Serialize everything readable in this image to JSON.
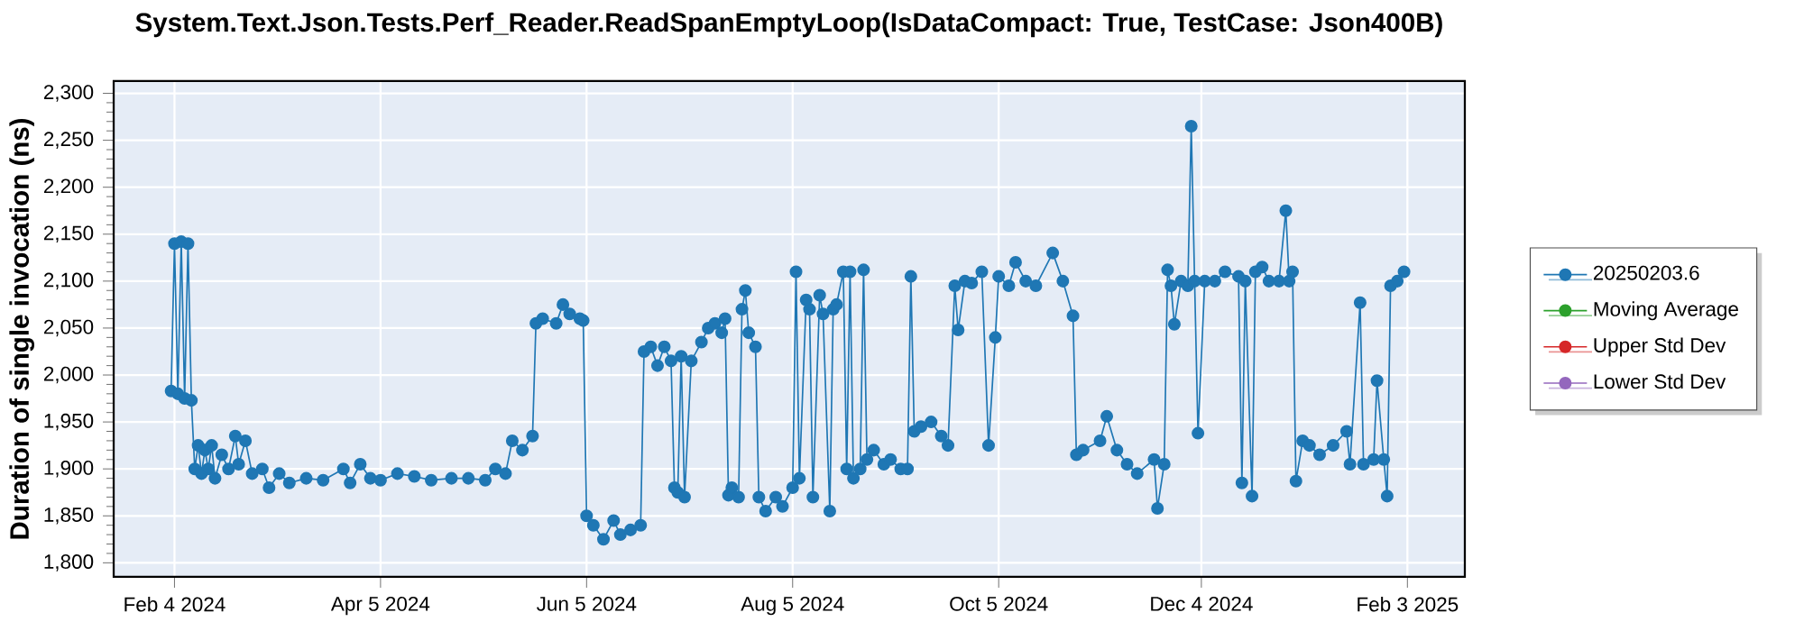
{
  "chart_data": {
    "type": "line",
    "title": "System.Text.Json.Tests.Perf_Reader.ReadSpanEmptyLoop(IsDataCompact: True, TestCase: Json400B)",
    "ylabel": "Duration of single invocation (ns)",
    "x": [
      "2024-02-03",
      "2024-02-04",
      "2024-02-05",
      "2024-02-06",
      "2024-02-07",
      "2024-02-08",
      "2024-02-09",
      "2024-02-10",
      "2024-02-11",
      "2024-02-12",
      "2024-02-13",
      "2024-02-14",
      "2024-02-15",
      "2024-02-16",
      "2024-02-18",
      "2024-02-20",
      "2024-02-22",
      "2024-02-23",
      "2024-02-25",
      "2024-02-27",
      "2024-03-01",
      "2024-03-03",
      "2024-03-06",
      "2024-03-09",
      "2024-03-14",
      "2024-03-19",
      "2024-03-25",
      "2024-03-27",
      "2024-03-30",
      "2024-04-02",
      "2024-04-05",
      "2024-04-10",
      "2024-04-15",
      "2024-04-20",
      "2024-04-26",
      "2024-05-01",
      "2024-05-06",
      "2024-05-09",
      "2024-05-12",
      "2024-05-14",
      "2024-05-17",
      "2024-05-20",
      "2024-05-21",
      "2024-05-23",
      "2024-05-27",
      "2024-05-29",
      "2024-05-31",
      "2024-06-03",
      "2024-06-04",
      "2024-06-05",
      "2024-06-07",
      "2024-06-10",
      "2024-06-13",
      "2024-06-15",
      "2024-06-18",
      "2024-06-21",
      "2024-06-22",
      "2024-06-24",
      "2024-06-26",
      "2024-06-28",
      "2024-06-30",
      "2024-07-01",
      "2024-07-02",
      "2024-07-03",
      "2024-07-04",
      "2024-07-06",
      "2024-07-09",
      "2024-07-11",
      "2024-07-13",
      "2024-07-15",
      "2024-07-16",
      "2024-07-17",
      "2024-07-18",
      "2024-07-20",
      "2024-07-21",
      "2024-07-22",
      "2024-07-23",
      "2024-07-25",
      "2024-07-26",
      "2024-07-28",
      "2024-07-31",
      "2024-08-02",
      "2024-08-05",
      "2024-08-06",
      "2024-08-07",
      "2024-08-09",
      "2024-08-10",
      "2024-08-11",
      "2024-08-13",
      "2024-08-14",
      "2024-08-16",
      "2024-08-17",
      "2024-08-18",
      "2024-08-20",
      "2024-08-21",
      "2024-08-22",
      "2024-08-23",
      "2024-08-25",
      "2024-08-26",
      "2024-08-27",
      "2024-08-29",
      "2024-09-01",
      "2024-09-03",
      "2024-09-06",
      "2024-09-08",
      "2024-09-09",
      "2024-09-10",
      "2024-09-12",
      "2024-09-15",
      "2024-09-18",
      "2024-09-20",
      "2024-09-22",
      "2024-09-23",
      "2024-09-25",
      "2024-09-27",
      "2024-09-30",
      "2024-10-02",
      "2024-10-04",
      "2024-10-05",
      "2024-10-08",
      "2024-10-10",
      "2024-10-13",
      "2024-10-16",
      "2024-10-21",
      "2024-10-24",
      "2024-10-27",
      "2024-10-28",
      "2024-10-30",
      "2024-11-04",
      "2024-11-06",
      "2024-11-09",
      "2024-11-12",
      "2024-11-15",
      "2024-11-20",
      "2024-11-21",
      "2024-11-23",
      "2024-11-24",
      "2024-11-25",
      "2024-11-26",
      "2024-11-28",
      "2024-11-30",
      "2024-12-01",
      "2024-12-02",
      "2024-12-03",
      "2024-12-05",
      "2024-12-08",
      "2024-12-11",
      "2024-12-15",
      "2024-12-16",
      "2024-12-17",
      "2024-12-19",
      "2024-12-20",
      "2024-12-22",
      "2024-12-24",
      "2024-12-27",
      "2024-12-29",
      "2024-12-30",
      "2024-12-31",
      "2025-01-01",
      "2025-01-03",
      "2025-01-05",
      "2025-01-08",
      "2025-01-12",
      "2025-01-16",
      "2025-01-17",
      "2025-01-20",
      "2025-01-21",
      "2025-01-24",
      "2025-01-25",
      "2025-01-27",
      "2025-01-28",
      "2025-01-29",
      "2025-01-31",
      "2025-02-02"
    ],
    "series": [
      {
        "name": "20250203.6",
        "color": "#1f77b4",
        "values": [
          1983,
          2140,
          1980,
          2142,
          1975,
          2140,
          1973,
          1900,
          1925,
          1895,
          1920,
          1900,
          1925,
          1890,
          1915,
          1900,
          1935,
          1905,
          1930,
          1895,
          1900,
          1880,
          1895,
          1885,
          1890,
          1888,
          1900,
          1885,
          1905,
          1890,
          1888,
          1895,
          1892,
          1888,
          1890,
          1890,
          1888,
          1900,
          1895,
          1930,
          1920,
          1935,
          2055,
          2060,
          2055,
          2075,
          2065,
          2060,
          2058,
          1850,
          1840,
          1825,
          1845,
          1830,
          1835,
          1840,
          2025,
          2030,
          2010,
          2030,
          2015,
          1880,
          1875,
          2020,
          1870,
          2015,
          2035,
          2050,
          2055,
          2045,
          2060,
          1872,
          1880,
          1870,
          2070,
          2090,
          2045,
          2030,
          1870,
          1855,
          1870,
          1860,
          1880,
          2110,
          1890,
          2080,
          2070,
          1870,
          2085,
          2065,
          1855,
          2070,
          2075,
          2110,
          1900,
          2110,
          1890,
          1900,
          2112,
          1910,
          1920,
          1905,
          1910,
          1900,
          1900,
          2105,
          1940,
          1945,
          1950,
          1935,
          1925,
          2095,
          2048,
          2100,
          2098,
          2110,
          1925,
          2040,
          2105,
          2095,
          2120,
          2100,
          2095,
          2130,
          2100,
          2063,
          1915,
          1920,
          1930,
          1956,
          1920,
          1905,
          1895,
          1910,
          1858,
          1905,
          2112,
          2095,
          2054,
          2100,
          2095,
          2265,
          2100,
          1938,
          2100,
          2100,
          2110,
          2105,
          1885,
          2100,
          1871,
          2110,
          2115,
          2100,
          2100,
          2175,
          2100,
          2110,
          1887,
          1930,
          1925,
          1915,
          1925,
          1940,
          1905,
          2077,
          1905,
          1910,
          1994,
          1910,
          1871,
          2095,
          2100,
          2110
        ]
      },
      {
        "name": "Moving Average",
        "color": "#2ca02c",
        "values": [
          null,
          null,
          null,
          null,
          null,
          null,
          null,
          null,
          null,
          null,
          null,
          null,
          null,
          null,
          null,
          null,
          null,
          null,
          null,
          null,
          null,
          null,
          null,
          null,
          null,
          null,
          null,
          null,
          null,
          null,
          null,
          null,
          null,
          null,
          null,
          null,
          null,
          null,
          null,
          null,
          null,
          null,
          null,
          null,
          null,
          null,
          null,
          null,
          null,
          null,
          null,
          null,
          null,
          null,
          null,
          null,
          null,
          null,
          null,
          null,
          null,
          null,
          null,
          null,
          null,
          null,
          null,
          null,
          null,
          null,
          null,
          null,
          null,
          null,
          null,
          null,
          null,
          null,
          null,
          null,
          null,
          null,
          null,
          null,
          null,
          null,
          null,
          null,
          null,
          null,
          null,
          null,
          null,
          null,
          null,
          null,
          null,
          null,
          null,
          null,
          null,
          null,
          null,
          null,
          null,
          null,
          null,
          null,
          null,
          null,
          null,
          null,
          null,
          null,
          null,
          null,
          null,
          null,
          null,
          null,
          null,
          null,
          null,
          null,
          null,
          null,
          null,
          null,
          null,
          null,
          null,
          null,
          null,
          null,
          null,
          null,
          null,
          null,
          null,
          null,
          null,
          null,
          null,
          null,
          null,
          null,
          null,
          null,
          null,
          null,
          null,
          null,
          null,
          null,
          null,
          null,
          null,
          null,
          null,
          null,
          null,
          null,
          null,
          null,
          null,
          null,
          null,
          null,
          null,
          null,
          null,
          null,
          null,
          null
        ]
      },
      {
        "name": "Upper Std Dev",
        "color": "#d62728",
        "values": [
          null,
          null,
          null,
          null,
          null,
          null,
          null,
          null,
          null,
          null,
          null,
          null,
          null,
          null,
          null,
          null,
          null,
          null,
          null,
          null,
          null,
          null,
          null,
          null,
          null,
          null,
          null,
          null,
          null,
          null,
          null,
          null,
          null,
          null,
          null,
          null,
          null,
          null,
          null,
          null,
          null,
          null,
          null,
          null,
          null,
          null,
          null,
          null,
          null,
          null,
          null,
          null,
          null,
          null,
          null,
          null,
          null,
          null,
          null,
          null,
          null,
          null,
          null,
          null,
          null,
          null,
          null,
          null,
          null,
          null,
          null,
          null,
          null,
          null,
          null,
          null,
          null,
          null,
          null,
          null,
          null,
          null,
          null,
          null,
          null,
          null,
          null,
          null,
          null,
          null,
          null,
          null,
          null,
          null,
          null,
          null,
          null,
          null,
          null,
          null,
          null,
          null,
          null,
          null,
          null,
          null,
          null,
          null,
          null,
          null,
          null,
          null,
          null,
          null,
          null,
          null,
          null,
          null,
          null,
          null,
          null,
          null,
          null,
          null,
          null,
          null,
          null,
          null,
          null,
          null,
          null,
          null,
          null,
          null,
          null,
          null,
          null,
          null,
          null,
          null,
          null,
          null,
          null,
          null,
          null,
          null,
          null,
          null,
          null,
          null,
          null,
          null,
          null,
          null,
          null,
          null,
          null,
          null,
          null,
          null,
          null,
          null,
          null,
          null,
          null,
          null,
          null,
          null,
          null,
          null,
          null,
          null,
          null,
          null
        ]
      },
      {
        "name": "Lower Std Dev",
        "color": "#9467bd",
        "values": [
          null,
          null,
          null,
          null,
          null,
          null,
          null,
          null,
          null,
          null,
          null,
          null,
          null,
          null,
          null,
          null,
          null,
          null,
          null,
          null,
          null,
          null,
          null,
          null,
          null,
          null,
          null,
          null,
          null,
          null,
          null,
          null,
          null,
          null,
          null,
          null,
          null,
          null,
          null,
          null,
          null,
          null,
          null,
          null,
          null,
          null,
          null,
          null,
          null,
          null,
          null,
          null,
          null,
          null,
          null,
          null,
          null,
          null,
          null,
          null,
          null,
          null,
          null,
          null,
          null,
          null,
          null,
          null,
          null,
          null,
          null,
          null,
          null,
          null,
          null,
          null,
          null,
          null,
          null,
          null,
          null,
          null,
          null,
          null,
          null,
          null,
          null,
          null,
          null,
          null,
          null,
          null,
          null,
          null,
          null,
          null,
          null,
          null,
          null,
          null,
          null,
          null,
          null,
          null,
          null,
          null,
          null,
          null,
          null,
          null,
          null,
          null,
          null,
          null,
          null,
          null,
          null,
          null,
          null,
          null,
          null,
          null,
          null,
          null,
          null,
          null,
          null,
          null,
          null,
          null,
          null,
          null,
          null,
          null,
          null,
          null,
          null,
          null,
          null,
          null,
          null,
          null,
          null,
          null,
          null,
          null,
          null,
          null,
          null,
          null,
          null,
          null,
          null,
          null,
          null,
          null,
          null,
          null,
          null,
          null,
          null,
          null,
          null,
          null,
          null,
          null,
          null,
          null,
          null,
          null,
          null,
          null,
          null,
          null
        ]
      }
    ],
    "xlim": [
      "2024-01-17",
      "2025-02-20"
    ],
    "xticks": [
      {
        "value": "2024-02-04",
        "label": "Feb 4 2024"
      },
      {
        "value": "2024-04-05",
        "label": "Apr 5 2024"
      },
      {
        "value": "2024-06-05",
        "label": "Jun 5 2024"
      },
      {
        "value": "2024-08-05",
        "label": "Aug 5 2024"
      },
      {
        "value": "2024-10-05",
        "label": "Oct 5 2024"
      },
      {
        "value": "2024-12-04",
        "label": "Dec 4 2024"
      },
      {
        "value": "2025-02-03",
        "label": "Feb 3 2025"
      }
    ],
    "ylim": [
      1785,
      2313
    ],
    "yticks": [
      {
        "value": 1800,
        "label": "1,800"
      },
      {
        "value": 1850,
        "label": "1,850"
      },
      {
        "value": 1900,
        "label": "1,900"
      },
      {
        "value": 1950,
        "label": "1,950"
      },
      {
        "value": 2000,
        "label": "2,000"
      },
      {
        "value": 2050,
        "label": "2,050"
      },
      {
        "value": 2100,
        "label": "2,100"
      },
      {
        "value": 2150,
        "label": "2,150"
      },
      {
        "value": 2200,
        "label": "2,200"
      },
      {
        "value": 2250,
        "label": "2,250"
      },
      {
        "value": 2300,
        "label": "2,300"
      }
    ],
    "grid": true,
    "legend": "right",
    "marker": "circle"
  }
}
